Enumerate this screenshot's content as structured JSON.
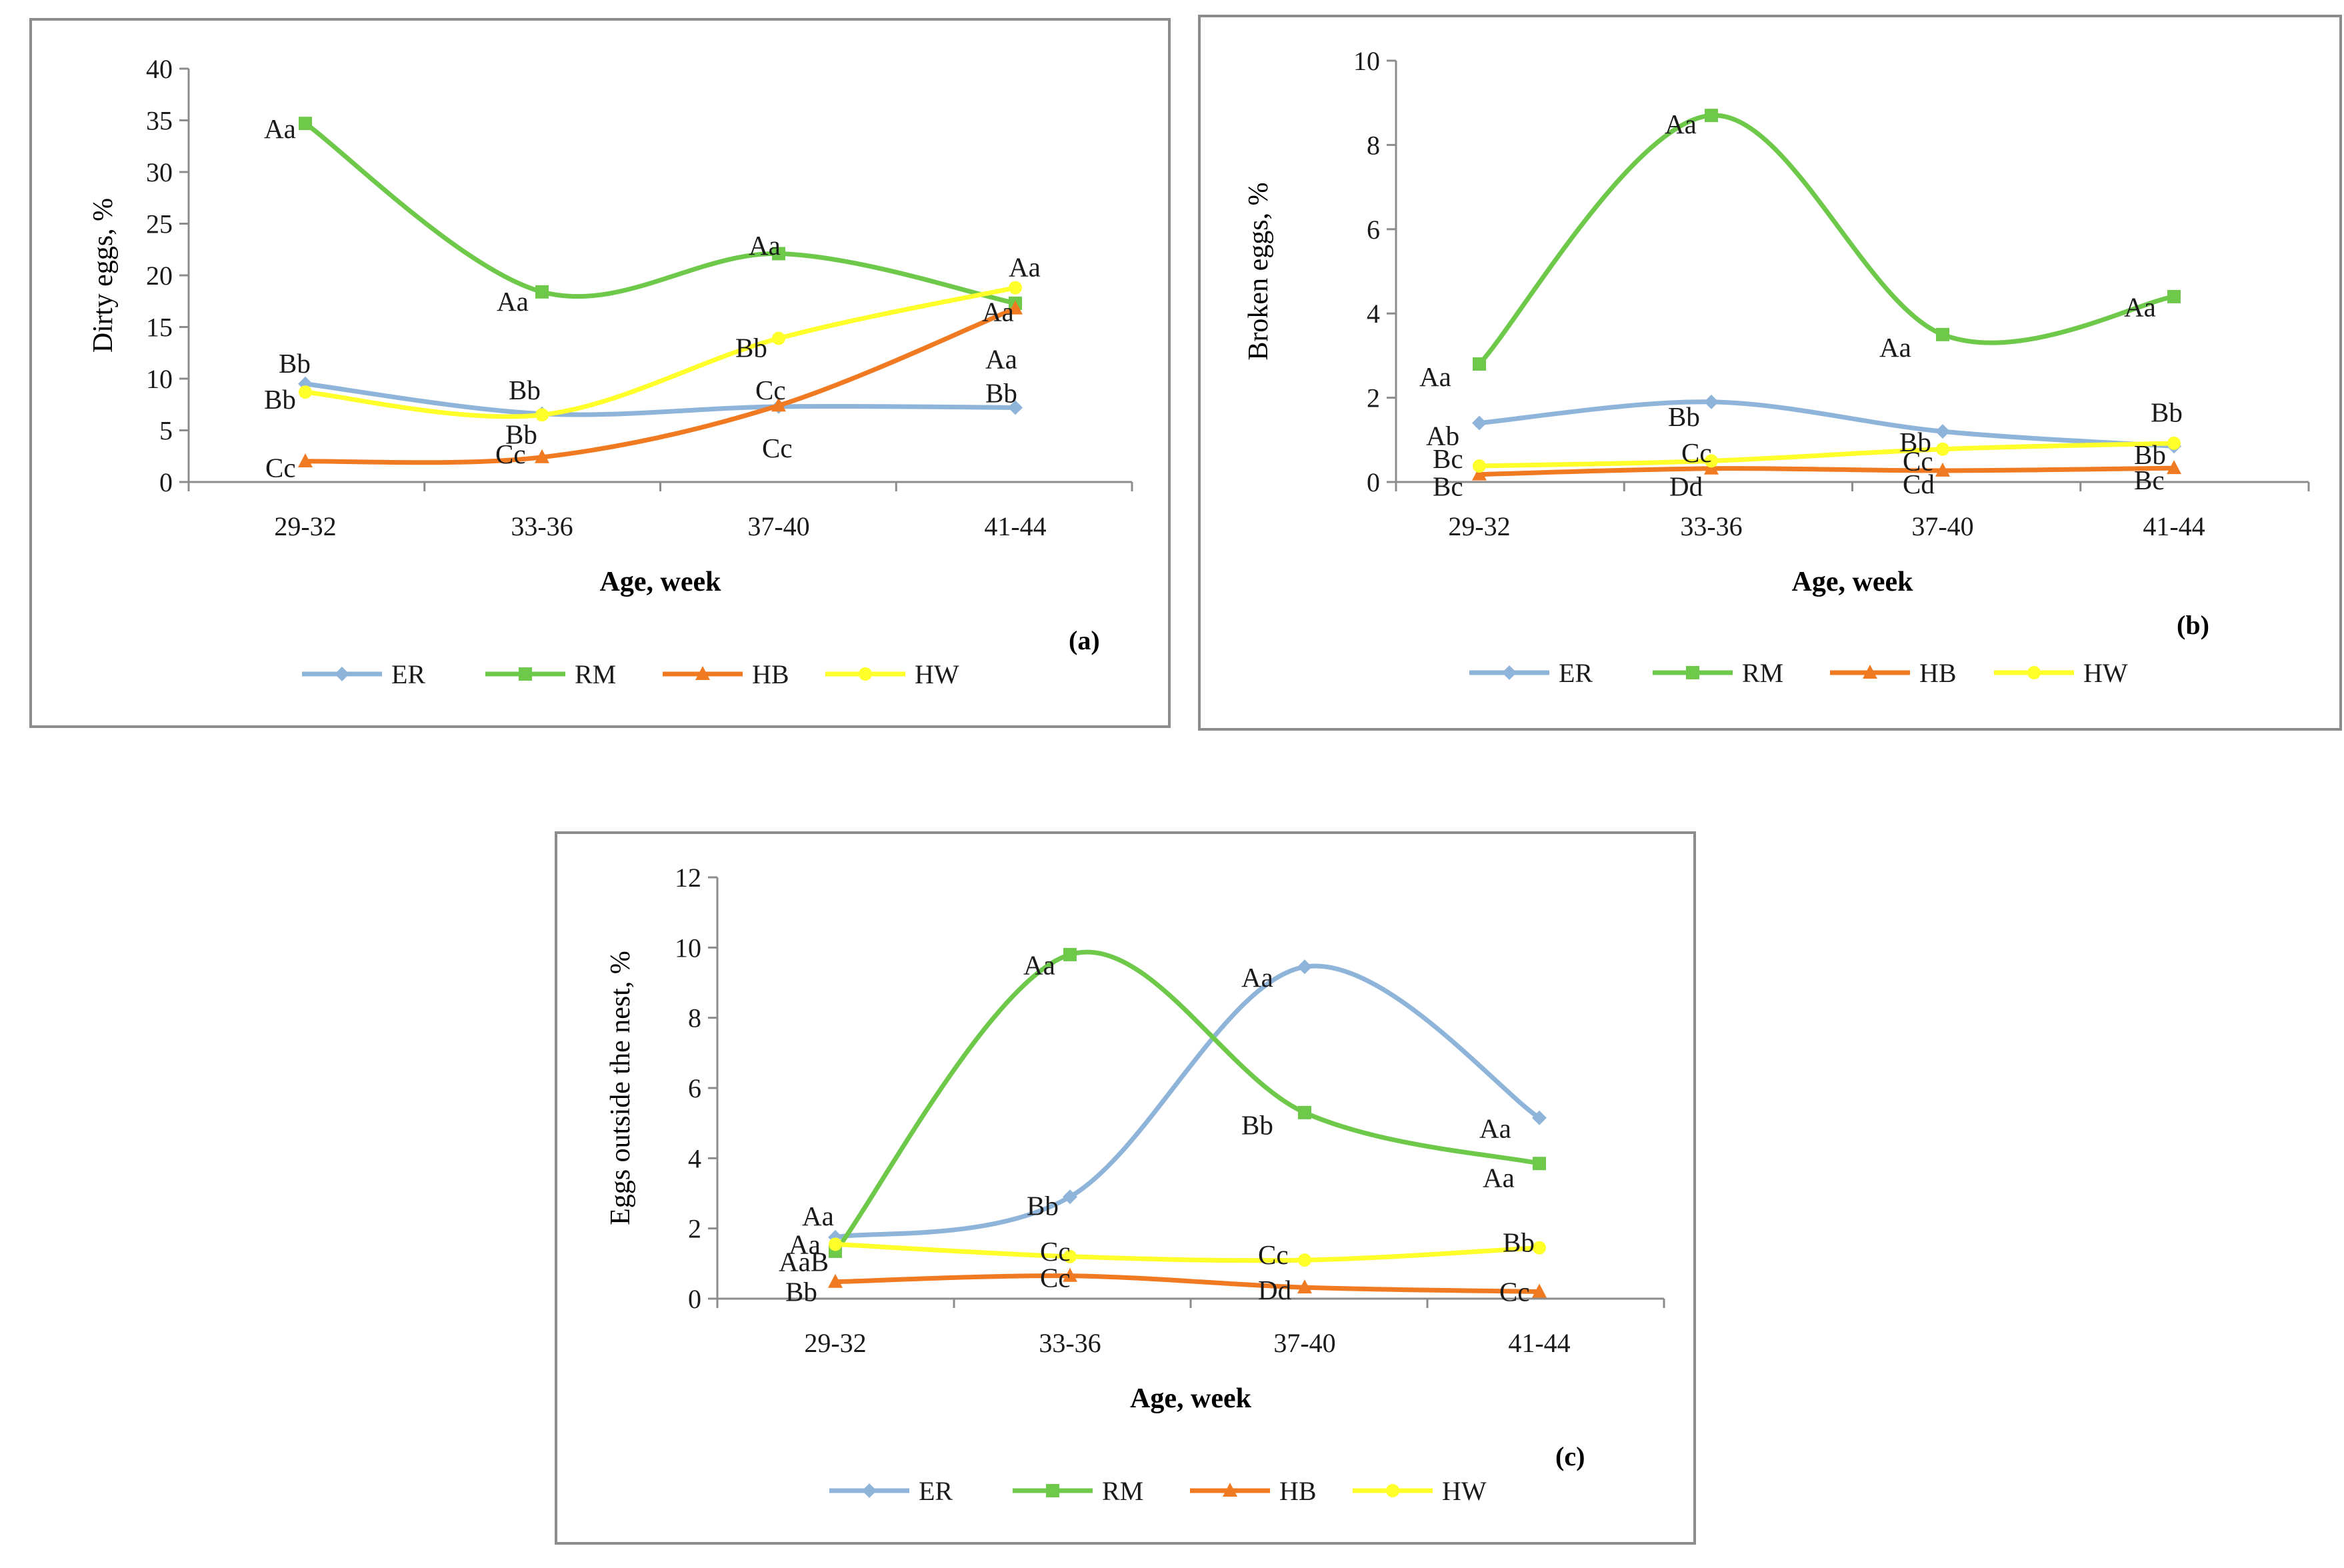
{
  "series_colors": {
    "ER": "#8fb4d9",
    "RM": "#6ec94a",
    "HB": "#f07a22",
    "HW": "#ffff2a"
  },
  "chart_data": [
    {
      "id": "a",
      "type": "line",
      "panel_label": "(a)",
      "xlabel": "Age, week",
      "ylabel": "Dirty eggs,  %",
      "ylim": [
        0,
        40
      ],
      "yticks": [
        "0",
        "5",
        "10",
        "15",
        "20",
        "25",
        "30",
        "35",
        "40"
      ],
      "categories": [
        "29-32",
        "33-36",
        "37-40",
        "41-44"
      ],
      "legend": [
        "ER",
        "RM",
        "HB",
        "HW"
      ],
      "series": [
        {
          "name": "ER",
          "marker": "diamond",
          "values": [
            9.5,
            6.6,
            7.3,
            7.2
          ]
        },
        {
          "name": "RM",
          "marker": "square",
          "values": [
            34.7,
            18.4,
            22.1,
            17.3
          ]
        },
        {
          "name": "HB",
          "marker": "triangle",
          "values": [
            2.0,
            2.4,
            7.4,
            16.8
          ]
        },
        {
          "name": "HW",
          "marker": "circle",
          "values": [
            8.7,
            6.5,
            13.9,
            18.8
          ]
        }
      ],
      "annotations": [
        {
          "text": "Aa",
          "x": 0,
          "y": 34.2,
          "dx": -62
        },
        {
          "text": "Bb",
          "x": 0,
          "y": 11.5,
          "dx": -40
        },
        {
          "text": "Bb",
          "x": 0,
          "y": 8.0,
          "dx": -62
        },
        {
          "text": "Cc",
          "x": 0,
          "y": 1.4,
          "dx": -60
        },
        {
          "text": "Aa",
          "x": 1,
          "y": 17.5,
          "dx": -68
        },
        {
          "text": "Bb",
          "x": 1,
          "y": 8.9,
          "dx": -50
        },
        {
          "text": "Bb",
          "x": 1,
          "y": 4.6,
          "dx": -55
        },
        {
          "text": "Cc",
          "x": 1,
          "y": 2.7,
          "dx": -70
        },
        {
          "text": "Aa",
          "x": 2,
          "y": 22.9,
          "dx": -45
        },
        {
          "text": "Bb",
          "x": 2,
          "y": 13.0,
          "dx": -65
        },
        {
          "text": "Cc",
          "x": 2,
          "y": 8.9,
          "dx": -35
        },
        {
          "text": "Cc",
          "x": 2,
          "y": 3.3,
          "dx": -25
        },
        {
          "text": "Aa",
          "x": 3,
          "y": 20.8,
          "dx": -10
        },
        {
          "text": "Aa",
          "x": 3,
          "y": 16.5,
          "dx": -50
        },
        {
          "text": "Aa",
          "x": 3,
          "y": 11.9,
          "dx": -45
        },
        {
          "text": "Bb",
          "x": 3,
          "y": 8.6,
          "dx": -45
        }
      ]
    },
    {
      "id": "b",
      "type": "line",
      "panel_label": "(b)",
      "xlabel": "Age, week",
      "ylabel": "Broken eggs,  %",
      "ylim": [
        0,
        10
      ],
      "yticks": [
        "0",
        "2",
        "4",
        "6",
        "8",
        "10"
      ],
      "categories": [
        "29-32",
        "33-36",
        "37-40",
        "41-44"
      ],
      "legend": [
        "ER",
        "RM",
        "HB",
        "HW"
      ],
      "series": [
        {
          "name": "ER",
          "marker": "diamond",
          "values": [
            1.4,
            1.9,
            1.2,
            0.85
          ]
        },
        {
          "name": "RM",
          "marker": "square",
          "values": [
            2.8,
            8.7,
            3.5,
            4.4
          ]
        },
        {
          "name": "HB",
          "marker": "triangle",
          "values": [
            0.18,
            0.32,
            0.27,
            0.33
          ]
        },
        {
          "name": "HW",
          "marker": "circle",
          "values": [
            0.38,
            0.5,
            0.78,
            0.92
          ]
        }
      ],
      "annotations": [
        {
          "text": "Aa",
          "x": 0,
          "y": 2.5,
          "dx": -90
        },
        {
          "text": "Ab",
          "x": 0,
          "y": 1.1,
          "dx": -80
        },
        {
          "text": "Bc",
          "x": 0,
          "y": 0.55,
          "dx": -70
        },
        {
          "text": "Bc",
          "x": 0,
          "y": -0.1,
          "dx": -70
        },
        {
          "text": "Aa",
          "x": 1,
          "y": 8.5,
          "dx": -70
        },
        {
          "text": "Bb",
          "x": 1,
          "y": 1.55,
          "dx": -65
        },
        {
          "text": "Cc",
          "x": 1,
          "y": 0.7,
          "dx": -45
        },
        {
          "text": "Dd",
          "x": 1,
          "y": -0.1,
          "dx": -63
        },
        {
          "text": "Aa",
          "x": 2,
          "y": 3.2,
          "dx": -95
        },
        {
          "text": "Bb",
          "x": 2,
          "y": 0.95,
          "dx": -65
        },
        {
          "text": "Cc",
          "x": 2,
          "y": 0.5,
          "dx": -60
        },
        {
          "text": "Cd",
          "x": 2,
          "y": -0.05,
          "dx": -60
        },
        {
          "text": "Aa",
          "x": 3,
          "y": 4.15,
          "dx": -75
        },
        {
          "text": "Bb",
          "x": 3,
          "y": 1.65,
          "dx": -35
        },
        {
          "text": "Bb",
          "x": 3,
          "y": 0.65,
          "dx": -60
        },
        {
          "text": "Bc",
          "x": 3,
          "y": 0.05,
          "dx": -60
        }
      ]
    },
    {
      "id": "c",
      "type": "line",
      "panel_label": "(c)",
      "xlabel": "Age, week",
      "ylabel": "Eggs outside  the nest,  %",
      "ylim": [
        0,
        12
      ],
      "yticks": [
        "0",
        "2",
        "4",
        "6",
        "8",
        "10",
        "12"
      ],
      "categories": [
        "29-32",
        "33-36",
        "37-40",
        "41-44"
      ],
      "legend": [
        "ER",
        "RM",
        "HB",
        "HW"
      ],
      "series": [
        {
          "name": "ER",
          "marker": "diamond",
          "values": [
            1.75,
            2.9,
            9.45,
            5.15
          ]
        },
        {
          "name": "RM",
          "marker": "square",
          "values": [
            1.35,
            9.8,
            5.3,
            3.85
          ]
        },
        {
          "name": "HB",
          "marker": "triangle",
          "values": [
            0.48,
            0.65,
            0.32,
            0.2
          ]
        },
        {
          "name": "HW",
          "marker": "circle",
          "values": [
            1.55,
            1.2,
            1.1,
            1.45
          ]
        }
      ],
      "annotations": [
        {
          "text": "Aa",
          "x": 0,
          "y": 2.35,
          "dx": -50
        },
        {
          "text": "Aa",
          "x": 0,
          "y": 1.55,
          "dx": -70
        },
        {
          "text": "AaB",
          "x": 0,
          "y": 1.05,
          "dx": -85
        },
        {
          "text": "Bb",
          "x": 0,
          "y": 0.2,
          "dx": -75
        },
        {
          "text": "Aa",
          "x": 1,
          "y": 9.5,
          "dx": -70
        },
        {
          "text": "Bb",
          "x": 1,
          "y": 2.65,
          "dx": -65
        },
        {
          "text": "Cc",
          "x": 1,
          "y": 1.35,
          "dx": -45
        },
        {
          "text": "Cc",
          "x": 1,
          "y": 0.6,
          "dx": -45
        },
        {
          "text": "Aa",
          "x": 2,
          "y": 9.15,
          "dx": -95
        },
        {
          "text": "Bb",
          "x": 2,
          "y": 4.95,
          "dx": -95
        },
        {
          "text": "Cc",
          "x": 2,
          "y": 1.25,
          "dx": -70
        },
        {
          "text": "Dd",
          "x": 2,
          "y": 0.25,
          "dx": -70
        },
        {
          "text": "Aa",
          "x": 3,
          "y": 4.85,
          "dx": -90
        },
        {
          "text": "Aa",
          "x": 3,
          "y": 3.45,
          "dx": -85
        },
        {
          "text": "Bb",
          "x": 3,
          "y": 1.6,
          "dx": -55
        },
        {
          "text": "Cc",
          "x": 3,
          "y": 0.2,
          "dx": -60
        }
      ]
    }
  ]
}
